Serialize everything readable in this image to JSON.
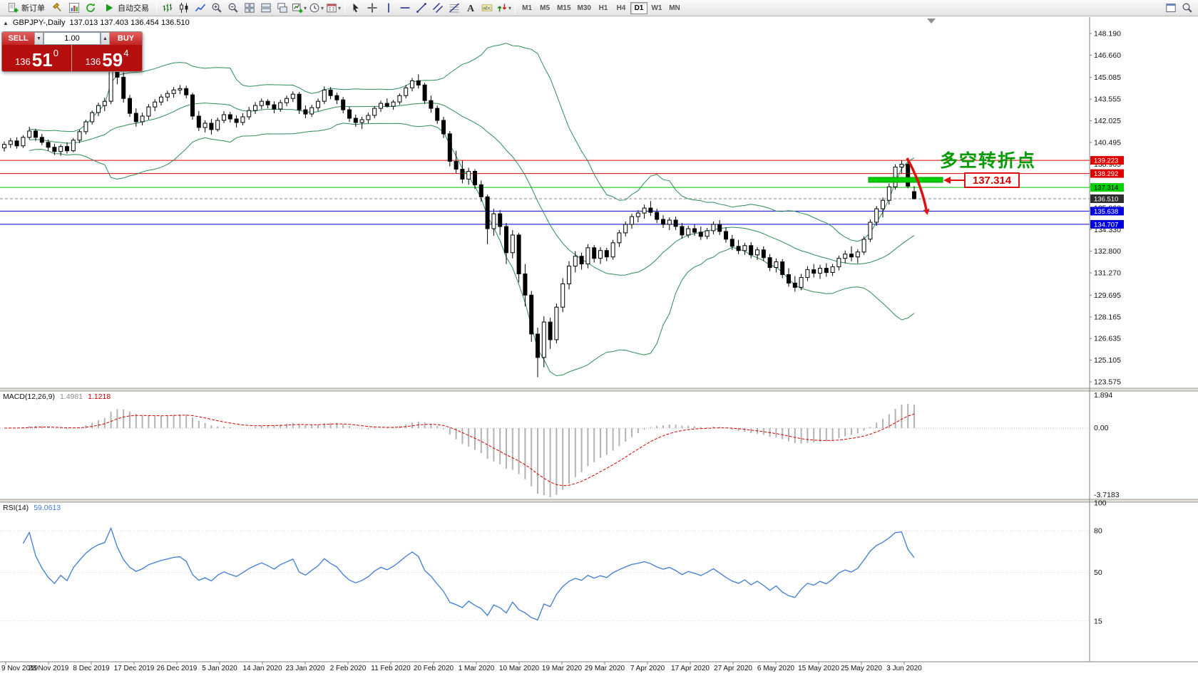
{
  "toolbar": {
    "groups": [
      [
        {
          "name": "new-order-button",
          "icon": "new-order",
          "label": "新订单"
        },
        {
          "name": "metaeditor-button",
          "icon": "hammer"
        },
        {
          "name": "market-watch-button",
          "icon": "chart"
        },
        {
          "name": "refresh-button",
          "icon": "refresh"
        },
        {
          "name": "autotrading-button",
          "icon": "play",
          "label": "自动交易"
        }
      ],
      [
        {
          "name": "bar-chart-button",
          "icon": "bars"
        },
        {
          "name": "candlestick-chart-button",
          "icon": "candles"
        },
        {
          "name": "line-chart-button",
          "icon": "linechart"
        },
        {
          "name": "zoom-in-button",
          "icon": "zoom-in"
        },
        {
          "name": "zoom-out-button",
          "icon": "zoom-out"
        },
        {
          "name": "tile-windows-button",
          "icon": "grid4"
        },
        {
          "name": "tile-horizontal-button",
          "icon": "tileh"
        },
        {
          "name": "cascade-windows-button",
          "icon": "cascade"
        },
        {
          "name": "new-chart-button",
          "icon": "chart-plus",
          "dropdown": true
        },
        {
          "name": "profiles-button",
          "icon": "clock",
          "dropdown": true
        },
        {
          "name": "templates-button",
          "icon": "calendar",
          "dropdown": true
        }
      ],
      [
        {
          "name": "cursor-button",
          "icon": "cursor"
        },
        {
          "name": "crosshair-button",
          "icon": "crosshair"
        },
        {
          "name": "vertical-line-button",
          "icon": "vline"
        },
        {
          "name": "horizontal-line-button",
          "icon": "hline"
        },
        {
          "name": "trendline-button",
          "icon": "trendline"
        },
        {
          "name": "equidistant-channel-button",
          "icon": "channel"
        },
        {
          "name": "fibonacci-button",
          "icon": "fibonacci"
        },
        {
          "name": "text-button",
          "icon": "text"
        },
        {
          "name": "text-label-button",
          "icon": "label"
        },
        {
          "name": "arrows-button",
          "icon": "arrows",
          "dropdown": true
        }
      ]
    ],
    "timeframes": [
      "M1",
      "M5",
      "M15",
      "M30",
      "H1",
      "H4",
      "D1",
      "W1",
      "MN"
    ],
    "active_timeframe": "D1",
    "right_items": [
      {
        "name": "open-data-window-button",
        "icon": "window"
      },
      {
        "name": "search-button",
        "icon": "search"
      }
    ]
  },
  "symbol_header": {
    "toggle": "▲",
    "symbol": "GBPJPY-,Daily",
    "ohlc": "137.013 137.403 136.454 136.510"
  },
  "trade_panel": {
    "sell_label": "SELL",
    "buy_label": "BUY",
    "volume": "1.00",
    "vol_down_icon": "▼",
    "vol_up_icon": "▲",
    "sell_price": {
      "prefix": "136",
      "big": "51",
      "sup": "0"
    },
    "buy_price": {
      "prefix": "136",
      "big": "59",
      "sup": "4"
    }
  },
  "indicator_labels": {
    "macd_name": "MACD(12,26,9)",
    "macd_value": "1.4981",
    "macd_signal": "1.1218",
    "rsi_name": "RSI(14)",
    "rsi_value": "59.0613"
  },
  "annotations": {
    "turning_point_text": "多空转折点",
    "level_callout": "137.314"
  },
  "axes": {
    "price_labels": [
      "148.190",
      "146.660",
      "145.085",
      "143.555",
      "142.025",
      "140.495",
      "138.965",
      "137.390",
      "135.860",
      "134.330",
      "132.800",
      "131.270",
      "129.695",
      "128.165",
      "126.635",
      "125.105",
      "123.575"
    ],
    "price_tags": [
      {
        "text": "139.223",
        "bg": "#dd0000",
        "fg": "#ffffff"
      },
      {
        "text": "138.292",
        "bg": "#dd0000",
        "fg": "#ffffff"
      },
      {
        "text": "137.314",
        "bg": "#00d200",
        "fg": "#000000"
      },
      {
        "text": "136.510",
        "bg": "#2f2f2f",
        "fg": "#ffffff"
      },
      {
        "text": "135.638",
        "bg": "#0000dd",
        "fg": "#ffffff"
      },
      {
        "text": "134.707",
        "bg": "#0000dd",
        "fg": "#ffffff"
      }
    ],
    "macd_labels": [
      "1.894",
      "0.00",
      "-3.7183"
    ],
    "rsi_labels": [
      "100",
      "80",
      "50",
      "15"
    ],
    "dates": [
      "9 Nov 2019",
      "28 Nov 2019",
      "8 Dec 2019",
      "17 Dec 2019",
      "26 Dec 2019",
      "5 Jan 2020",
      "14 Jan 2020",
      "23 Jan 2020",
      "2 Feb 2020",
      "11 Feb 2020",
      "20 Feb 2020",
      "1 Mar 2020",
      "10 Mar 2020",
      "19 Mar 2020",
      "29 Mar 2020",
      "7 Apr 2020",
      "17 Apr 2020",
      "27 Apr 2020",
      "6 May 2020",
      "15 May 2020",
      "25 May 2020",
      "3 Jun 2020"
    ]
  },
  "chart_data": {
    "type": "candlestick",
    "title": "GBPJPY-,Daily",
    "timeframe": "D1",
    "current_ohlc": {
      "open": 137.013,
      "high": 137.403,
      "low": 136.454,
      "close": 136.51
    },
    "current_price": 136.51,
    "price_range": [
      123.575,
      148.19
    ],
    "indicators": {
      "bollinger_period": 20,
      "bollinger_deviation": 2,
      "macd_params": "12,26,9",
      "macd_values": [
        1.4981,
        1.1218
      ],
      "macd_scale": [
        1.894,
        -3.7183
      ],
      "rsi_period": 14,
      "rsi_value": 59.0613
    },
    "horizontal_levels": [
      {
        "price": 139.223,
        "color": "#dd0000"
      },
      {
        "price": 138.292,
        "color": "#dd0000"
      },
      {
        "price": 137.314,
        "color": "#00c000"
      },
      {
        "price": 135.638,
        "color": "#0000dd"
      },
      {
        "price": 134.707,
        "color": "#0000dd"
      }
    ],
    "candles": [
      [
        140.1,
        140.55,
        139.85,
        140.35
      ],
      [
        140.35,
        140.8,
        140.1,
        140.6
      ],
      [
        140.6,
        140.85,
        140.05,
        140.25
      ],
      [
        140.25,
        141.0,
        140.1,
        140.85
      ],
      [
        140.85,
        141.6,
        140.7,
        141.3
      ],
      [
        141.3,
        141.45,
        140.6,
        140.85
      ],
      [
        140.85,
        141.1,
        140.3,
        140.5
      ],
      [
        140.5,
        140.7,
        139.9,
        140.15
      ],
      [
        140.15,
        140.4,
        139.6,
        139.85
      ],
      [
        139.85,
        140.35,
        139.55,
        140.2
      ],
      [
        140.2,
        140.5,
        139.7,
        139.9
      ],
      [
        139.9,
        140.8,
        139.8,
        140.65
      ],
      [
        140.65,
        141.4,
        140.45,
        141.25
      ],
      [
        141.25,
        142.1,
        141.05,
        141.95
      ],
      [
        141.95,
        142.75,
        141.75,
        142.6
      ],
      [
        142.6,
        143.3,
        142.35,
        143.1
      ],
      [
        143.1,
        143.65,
        142.7,
        143.4
      ],
      [
        143.4,
        147.05,
        143.2,
        146.8
      ],
      [
        146.8,
        148.1,
        144.6,
        145.1
      ],
      [
        145.1,
        145.45,
        143.3,
        143.6
      ],
      [
        143.6,
        143.85,
        142.3,
        142.55
      ],
      [
        142.55,
        142.9,
        141.6,
        141.95
      ],
      [
        141.95,
        142.6,
        141.7,
        142.35
      ],
      [
        142.35,
        143.2,
        142.1,
        143.0
      ],
      [
        143.0,
        143.55,
        142.7,
        143.35
      ],
      [
        143.35,
        143.9,
        143.1,
        143.7
      ],
      [
        143.7,
        144.15,
        143.4,
        143.95
      ],
      [
        143.95,
        144.4,
        143.65,
        144.2
      ],
      [
        144.2,
        144.55,
        143.9,
        144.3
      ],
      [
        144.3,
        144.5,
        143.6,
        143.85
      ],
      [
        143.85,
        144.0,
        142.1,
        142.35
      ],
      [
        142.35,
        142.7,
        141.3,
        141.55
      ],
      [
        141.55,
        142.05,
        141.2,
        141.85
      ],
      [
        141.85,
        142.15,
        141.05,
        141.4
      ],
      [
        141.4,
        142.25,
        141.25,
        142.05
      ],
      [
        142.05,
        142.7,
        141.85,
        142.45
      ],
      [
        142.45,
        142.65,
        141.9,
        142.15
      ],
      [
        142.15,
        142.4,
        141.55,
        141.9
      ],
      [
        141.9,
        142.55,
        141.7,
        142.3
      ],
      [
        142.3,
        143.0,
        142.1,
        142.75
      ],
      [
        142.75,
        143.35,
        142.5,
        143.1
      ],
      [
        143.1,
        143.6,
        142.85,
        143.4
      ],
      [
        143.4,
        143.55,
        142.9,
        143.15
      ],
      [
        143.15,
        143.4,
        142.55,
        142.85
      ],
      [
        142.85,
        143.5,
        142.65,
        143.3
      ],
      [
        143.3,
        143.8,
        143.05,
        143.6
      ],
      [
        143.6,
        144.1,
        143.35,
        143.9
      ],
      [
        143.9,
        144.05,
        142.5,
        142.8
      ],
      [
        142.8,
        143.1,
        142.2,
        142.5
      ],
      [
        142.5,
        143.15,
        142.3,
        142.95
      ],
      [
        142.95,
        143.6,
        142.7,
        143.4
      ],
      [
        143.4,
        144.45,
        143.2,
        144.2
      ],
      [
        144.2,
        144.4,
        143.55,
        143.8
      ],
      [
        143.8,
        144.0,
        143.2,
        143.5
      ],
      [
        143.5,
        143.7,
        142.55,
        142.8
      ],
      [
        142.8,
        143.0,
        141.95,
        142.2
      ],
      [
        142.2,
        142.45,
        141.6,
        141.9
      ],
      [
        141.9,
        142.3,
        141.45,
        142.1
      ],
      [
        142.1,
        142.6,
        141.85,
        142.4
      ],
      [
        142.4,
        143.05,
        142.2,
        142.9
      ],
      [
        142.9,
        143.45,
        142.65,
        143.25
      ],
      [
        143.25,
        143.6,
        142.95,
        143.05
      ],
      [
        143.05,
        143.5,
        142.8,
        143.35
      ],
      [
        143.35,
        143.95,
        143.15,
        143.8
      ],
      [
        143.8,
        144.55,
        143.6,
        144.35
      ],
      [
        144.35,
        145.05,
        144.1,
        144.85
      ],
      [
        144.85,
        145.3,
        144.3,
        144.55
      ],
      [
        144.55,
        144.7,
        143.2,
        143.45
      ],
      [
        143.45,
        143.8,
        142.6,
        142.9
      ],
      [
        142.9,
        143.1,
        141.8,
        142.05
      ],
      [
        142.05,
        142.3,
        140.8,
        141.1
      ],
      [
        141.1,
        141.3,
        138.8,
        139.15
      ],
      [
        139.15,
        139.9,
        138.3,
        138.6
      ],
      [
        138.6,
        139.2,
        137.6,
        137.9
      ],
      [
        137.9,
        138.7,
        137.5,
        138.45
      ],
      [
        138.45,
        138.6,
        137.2,
        137.5
      ],
      [
        137.5,
        137.8,
        136.3,
        136.65
      ],
      [
        136.65,
        136.8,
        133.3,
        134.4
      ],
      [
        134.4,
        135.8,
        133.9,
        135.45
      ],
      [
        135.45,
        135.7,
        133.95,
        134.55
      ],
      [
        134.55,
        134.8,
        131.9,
        132.7
      ],
      [
        132.7,
        134.3,
        132.3,
        133.95
      ],
      [
        133.95,
        134.1,
        130.6,
        131.2
      ],
      [
        131.2,
        131.9,
        128.9,
        129.7
      ],
      [
        129.7,
        130.0,
        126.4,
        126.95
      ],
      [
        126.95,
        127.4,
        123.9,
        125.3
      ],
      [
        125.3,
        128.2,
        124.6,
        127.8
      ],
      [
        127.8,
        128.1,
        125.9,
        126.55
      ],
      [
        126.55,
        129.1,
        126.3,
        128.85
      ],
      [
        128.85,
        130.9,
        128.5,
        130.5
      ],
      [
        130.5,
        132.1,
        130.1,
        131.75
      ],
      [
        131.75,
        132.8,
        131.3,
        132.45
      ],
      [
        132.45,
        132.7,
        131.5,
        131.9
      ],
      [
        131.9,
        133.3,
        131.6,
        133.05
      ],
      [
        133.05,
        133.25,
        132.0,
        132.3
      ],
      [
        132.3,
        133.1,
        131.9,
        132.85
      ],
      [
        132.85,
        133.05,
        132.1,
        132.4
      ],
      [
        132.4,
        133.6,
        132.2,
        133.4
      ],
      [
        133.4,
        134.3,
        133.1,
        134.1
      ],
      [
        134.1,
        134.9,
        133.85,
        134.7
      ],
      [
        134.7,
        135.45,
        134.4,
        135.25
      ],
      [
        135.25,
        135.7,
        134.85,
        135.5
      ],
      [
        135.5,
        136.1,
        135.1,
        135.85
      ],
      [
        135.85,
        136.35,
        135.3,
        135.55
      ],
      [
        135.55,
        135.8,
        134.8,
        135.05
      ],
      [
        135.05,
        135.35,
        134.45,
        134.7
      ],
      [
        134.7,
        135.2,
        134.3,
        135.0
      ],
      [
        135.0,
        135.25,
        134.3,
        134.55
      ],
      [
        134.55,
        134.8,
        133.7,
        133.95
      ],
      [
        133.95,
        134.6,
        133.75,
        134.4
      ],
      [
        134.4,
        134.7,
        133.9,
        134.15
      ],
      [
        134.15,
        134.55,
        133.6,
        133.85
      ],
      [
        133.85,
        134.45,
        133.65,
        134.25
      ],
      [
        134.25,
        134.9,
        134.0,
        134.7
      ],
      [
        134.7,
        135.0,
        133.95,
        134.2
      ],
      [
        134.2,
        134.5,
        133.4,
        133.65
      ],
      [
        133.65,
        133.95,
        132.9,
        133.15
      ],
      [
        133.15,
        133.6,
        132.6,
        132.85
      ],
      [
        132.85,
        133.4,
        132.55,
        133.2
      ],
      [
        133.2,
        133.45,
        132.3,
        132.55
      ],
      [
        132.55,
        133.1,
        132.2,
        132.9
      ],
      [
        132.9,
        133.15,
        132.1,
        132.35
      ],
      [
        132.35,
        132.6,
        131.4,
        131.65
      ],
      [
        131.65,
        132.3,
        131.3,
        132.05
      ],
      [
        132.05,
        132.25,
        130.9,
        131.15
      ],
      [
        131.15,
        131.6,
        130.3,
        130.55
      ],
      [
        130.55,
        131.05,
        129.95,
        130.25
      ],
      [
        130.25,
        131.2,
        130.05,
        130.95
      ],
      [
        130.95,
        131.75,
        130.7,
        131.5
      ],
      [
        131.5,
        131.9,
        130.95,
        131.25
      ],
      [
        131.25,
        131.85,
        130.85,
        131.6
      ],
      [
        131.6,
        131.95,
        131.0,
        131.3
      ],
      [
        131.3,
        131.9,
        131.05,
        131.7
      ],
      [
        131.7,
        132.5,
        131.45,
        132.3
      ],
      [
        132.3,
        132.85,
        131.95,
        132.6
      ],
      [
        132.6,
        133.15,
        132.1,
        132.4
      ],
      [
        132.4,
        132.95,
        131.95,
        132.75
      ],
      [
        132.75,
        133.85,
        132.55,
        133.65
      ],
      [
        133.65,
        135.05,
        133.45,
        134.85
      ],
      [
        134.85,
        136.0,
        134.6,
        135.8
      ],
      [
        135.8,
        136.6,
        135.2,
        136.4
      ],
      [
        136.4,
        137.6,
        136.1,
        137.35
      ],
      [
        137.35,
        138.95,
        137.15,
        138.75
      ],
      [
        138.75,
        139.22,
        138.3,
        138.95
      ],
      [
        138.95,
        139.1,
        137.25,
        137.4
      ],
      [
        137.013,
        137.403,
        136.454,
        136.51
      ]
    ]
  },
  "colors": {
    "bollinger": "#2E8B57",
    "macd_histogram": "#b2b2b2",
    "macd_signal": "#d40000",
    "rsi_line": "#3e7bd6",
    "candle_up": "#ffffff",
    "candle_down": "#000000",
    "level_red": "#dd0000",
    "level_green": "#00c000",
    "level_blue": "#0000dd",
    "annotation_green": "#009b00",
    "annotation_red": "#e01010",
    "trade_button_red": "#c32424",
    "trade_panel_red": "#b50e0e"
  }
}
